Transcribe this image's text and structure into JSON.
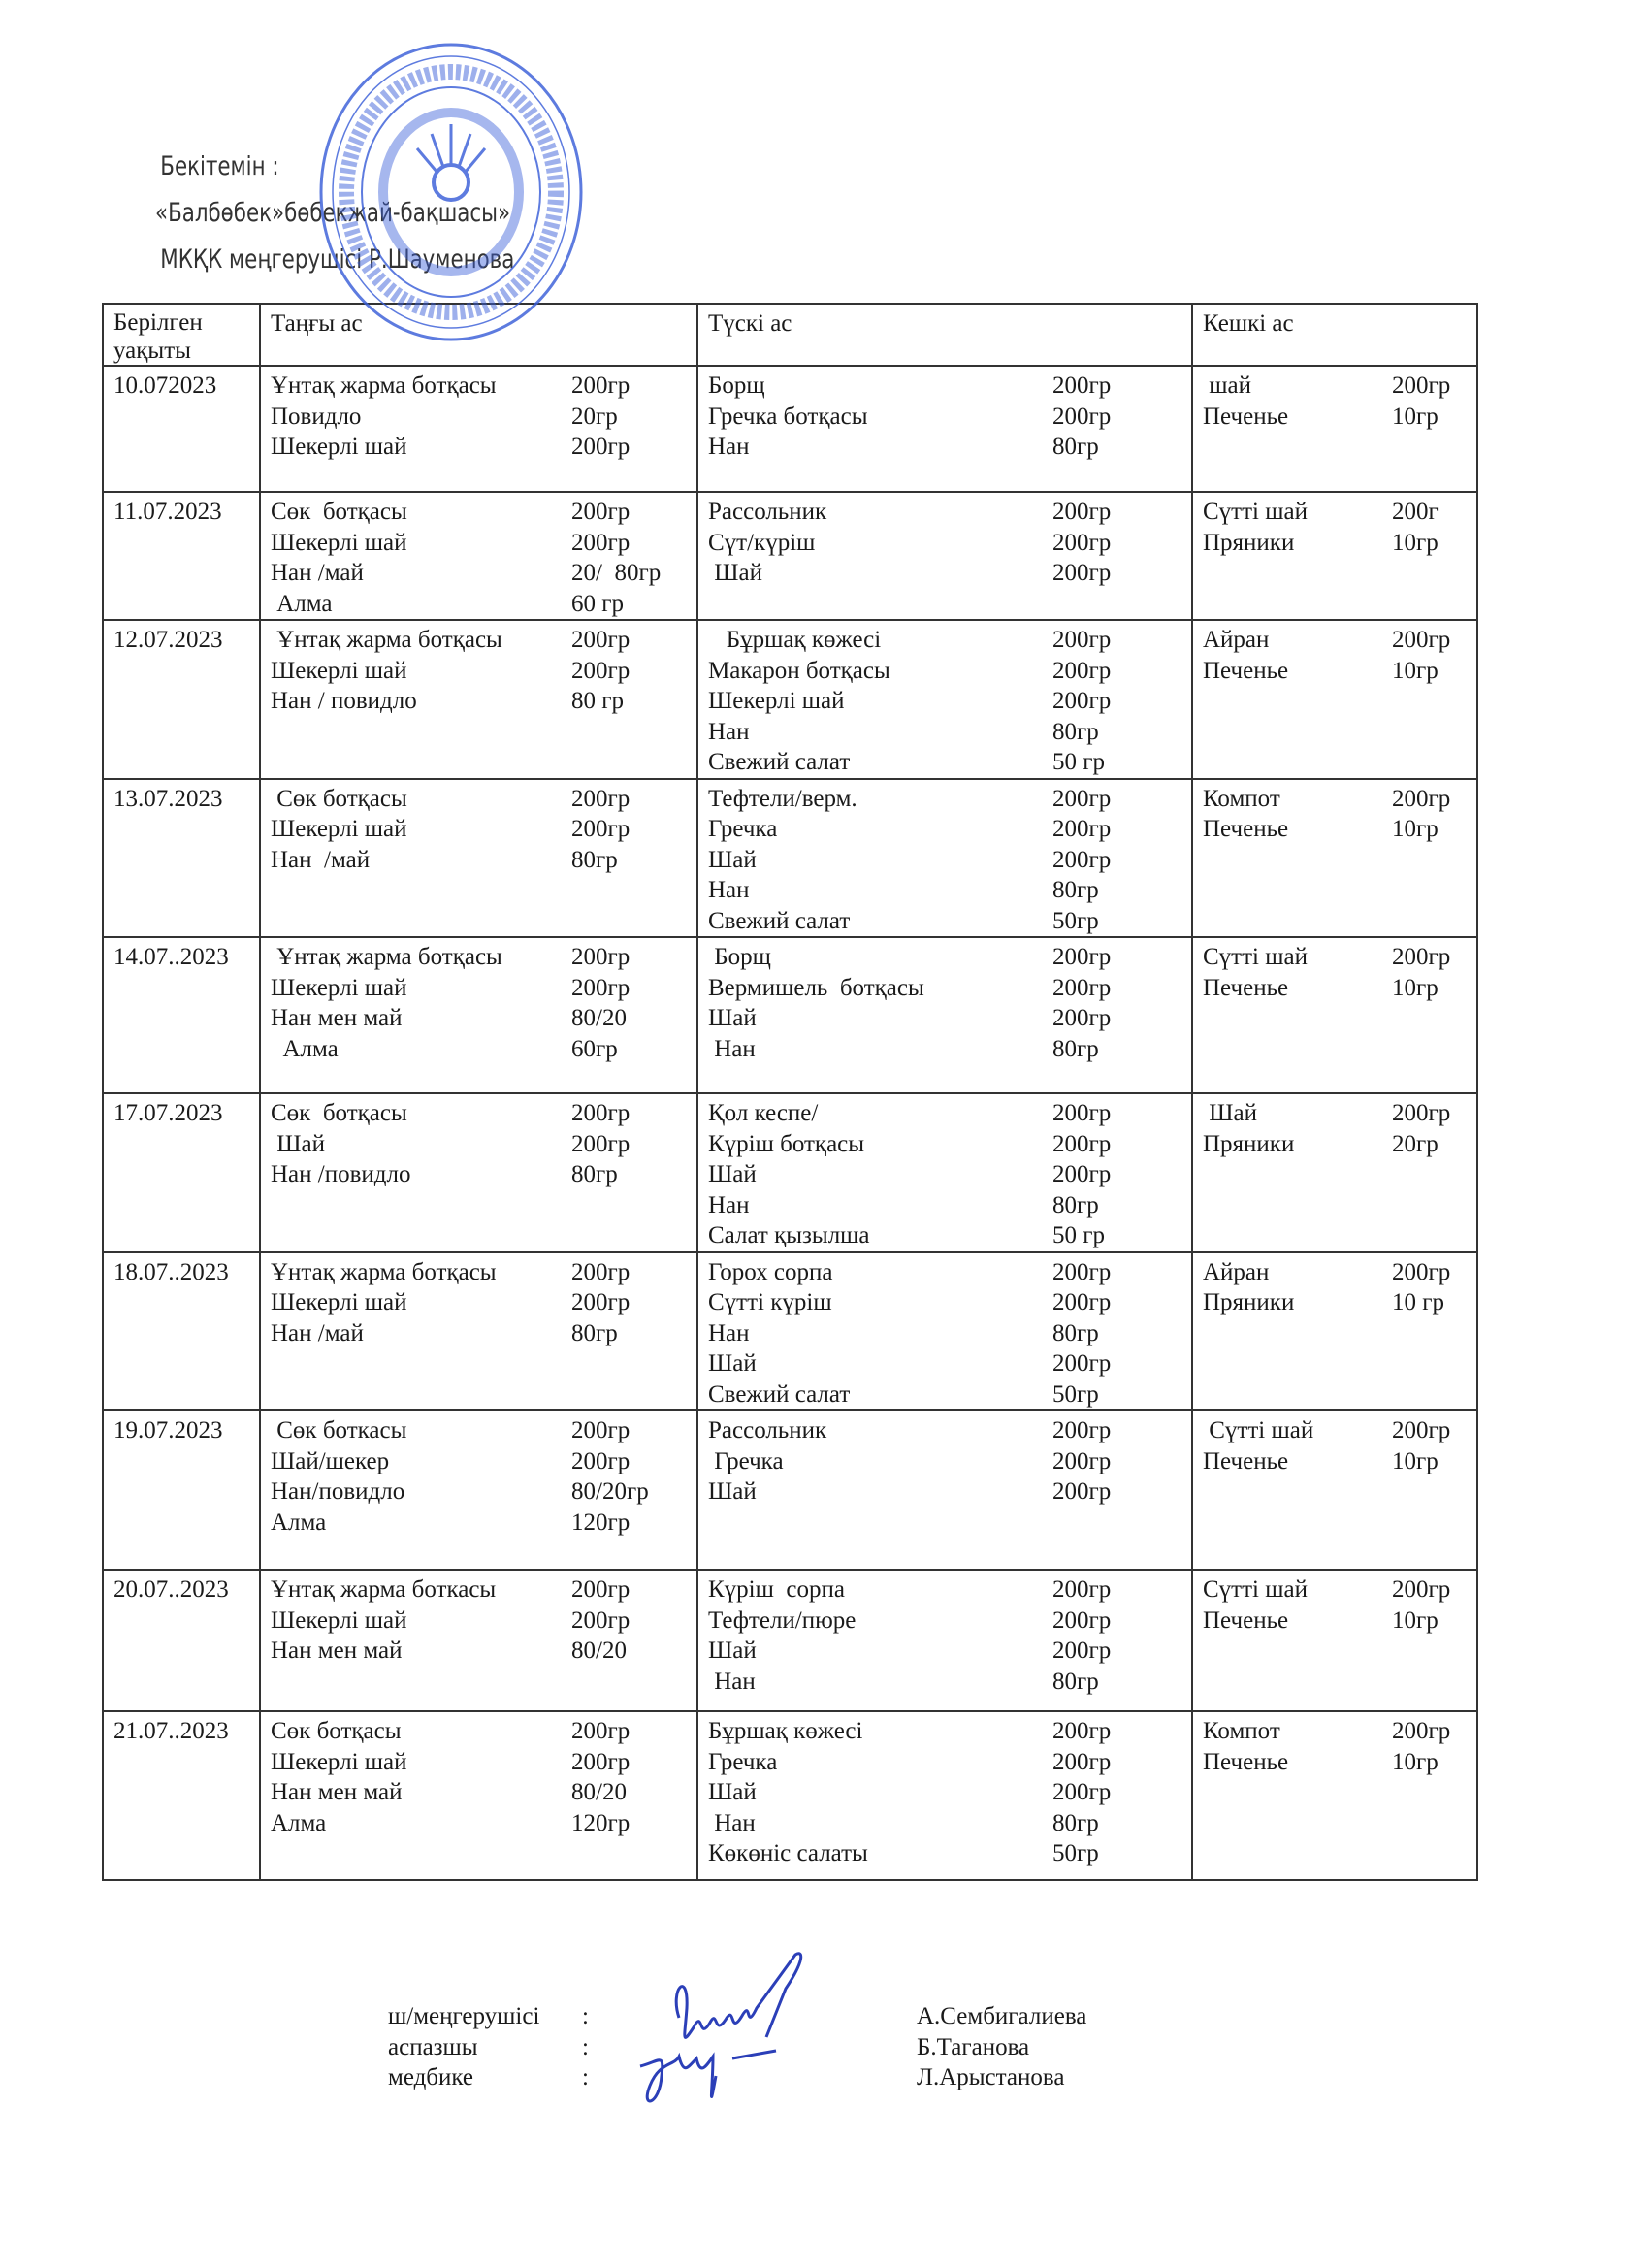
{
  "approval": {
    "line1": "Бекітемін :",
    "line2": "«Балбөбек»бөбекжай-бақшасы»",
    "line3": "МКҚК меңгерушісі Р.Шауменова"
  },
  "stamp": {
    "text": "Ақтөбе облысы Ойыл ауданының білім бөлімінің «Балбөбек» бөбекжай-бақшасы» мемлекеттік коммуналдық қазыналық кәсіпорны · Қазақстан Республикасы · 070540007037",
    "color": "#3a5fd8"
  },
  "table": {
    "headers": [
      "Берілген уақыты",
      "Таңғы ас",
      "Түскі ас",
      "Кешкі ас"
    ],
    "rows": [
      {
        "date": "10.072023",
        "h": 63,
        "breakfast": [
          [
            "Ұнтақ жарма ботқасы",
            "200гр"
          ],
          [
            "Повидло",
            "20гр"
          ],
          [
            "Шекерлі шай",
            "200гр"
          ]
        ],
        "lunch": [
          [
            "Борщ",
            "200гр"
          ],
          [
            "Гречка ботқасы",
            "200гр"
          ],
          [
            "Нан",
            "80гр"
          ]
        ],
        "dinner": [
          [
            " шай",
            "200гр"
          ],
          [
            "Печенье",
            "10гр"
          ]
        ]
      },
      {
        "date": "11.07.2023",
        "breakfast": [
          [
            "Сөк  ботқасы",
            "200гр"
          ],
          [
            "Шекерлі шай",
            "200гр"
          ],
          [
            "Нан /май",
            "20/  80гр"
          ],
          [
            " Алма",
            "60 гр"
          ]
        ],
        "lunch": [
          [
            "Рассольник",
            "200гр"
          ],
          [
            "Сүт/күріш",
            "200гр"
          ],
          [
            " Шай",
            "200гр"
          ]
        ],
        "dinner": [
          [
            "Сүтті шай",
            "200г"
          ],
          [
            "Пряники",
            "10гр"
          ]
        ]
      },
      {
        "date": "12.07.2023",
        "breakfast": [
          [
            " Ұнтақ жарма ботқасы",
            "200гр"
          ],
          [
            "Шекерлі шай",
            "200гр"
          ],
          [
            "Нан / повидло",
            "80 гр"
          ]
        ],
        "lunch": [
          [
            "   Бұршақ көжесі",
            "200гр"
          ],
          [
            "Макарон ботқасы",
            "200гр"
          ],
          [
            "Шекерлі шай",
            "200гр"
          ],
          [
            "Нан",
            "80гр"
          ],
          [
            "Свежий салат",
            "50 гр"
          ]
        ],
        "dinner": [
          [
            "Айран",
            "200гр"
          ],
          [
            "Печенье",
            "10гр"
          ]
        ]
      },
      {
        "date": "13.07.2023",
        "breakfast": [
          [
            " Сөк ботқасы",
            "200гр"
          ],
          [
            "Шекерлі шай",
            "200гр"
          ],
          [
            "Нан  /май",
            "80гр"
          ]
        ],
        "lunch": [
          [
            "Тефтели/верм.",
            "200гр"
          ],
          [
            "Гречка",
            "200гр"
          ],
          [
            "Шай",
            "200гр"
          ],
          [
            "Нан",
            "80гр"
          ],
          [
            "Свежий салат",
            "50гр"
          ]
        ],
        "dinner": [
          [
            "Компот",
            "200гр"
          ],
          [
            "Печенье",
            "10гр"
          ]
        ]
      },
      {
        "date": "14.07..2023",
        "breakfast": [
          [
            " Ұнтақ жарма ботқасы",
            "200гр"
          ],
          [
            "Шекерлі шай",
            "200гр"
          ],
          [
            "Нан мен май",
            "80/20"
          ],
          [
            "  Алма",
            "60гр"
          ]
        ],
        "lunch": [
          [
            " Борщ",
            "200гр"
          ],
          [
            "Вермишель  ботқасы",
            "200гр"
          ],
          [
            "Шай",
            "200гр"
          ],
          [
            " Нан",
            "80гр"
          ]
        ],
        "dinner": [
          [
            "Сүтті шай",
            "200гр"
          ],
          [
            "Печенье",
            "10гр"
          ]
        ]
      },
      {
        "date": "17.07.2023",
        "breakfast": [
          [
            "Сөк  ботқасы",
            "200гр"
          ],
          [
            " Шай",
            "200гр"
          ],
          [
            "Нан /повидло",
            "80гр"
          ]
        ],
        "lunch": [
          [
            "Қол кеспе/",
            "200гр"
          ],
          [
            "Күріш ботқасы",
            "200гр"
          ],
          [
            "Шай",
            "200гр"
          ],
          [
            "Нан",
            "80гр"
          ],
          [
            "Салат қызылша",
            "50 гр"
          ]
        ],
        "dinner": [
          [
            " Шай",
            "200гр"
          ],
          [
            "Пряники",
            "20гр"
          ]
        ]
      },
      {
        "date": "18.07..2023",
        "breakfast": [
          [
            "Ұнтақ жарма ботқасы",
            "200гр"
          ],
          [
            "Шекерлі шай",
            "200гр"
          ],
          [
            "Нан /май",
            "80гр"
          ]
        ],
        "lunch": [
          [
            "Горох сорпа",
            "200гр"
          ],
          [
            "Сүтті күріш",
            "200гр"
          ],
          [
            "Нан",
            "80гр"
          ],
          [
            "Шай",
            "200гр"
          ],
          [
            "Свежий салат",
            "50гр"
          ]
        ],
        "dinner": [
          [
            "Айран",
            "200гр"
          ],
          [
            "Пряники",
            "10 гр"
          ]
        ]
      },
      {
        "date": "19.07.2023",
        "breakfast": [
          [
            " Сөк боткасы",
            "200гр"
          ],
          [
            "Шай/шекер",
            "200гр"
          ],
          [
            "Нан/повидло",
            "80/20гр"
          ],
          [
            "Алма",
            "120гр"
          ]
        ],
        "lunch": [
          [
            "Рассольник",
            "200гр"
          ],
          [
            " Гречка",
            "200гр"
          ],
          [
            "Шай",
            "200гр"
          ]
        ],
        "dinner": [
          [
            " Сүтті шай",
            "200гр"
          ],
          [
            "Печенье",
            "10гр"
          ]
        ]
      },
      {
        "date": "20.07..2023",
        "breakfast": [
          [
            "Ұнтақ жарма боткасы",
            "200гр"
          ],
          [
            "Шекерлі шай",
            "200гр"
          ],
          [
            "Нан мен май",
            "80/20"
          ]
        ],
        "lunch": [
          [
            "Күріш  сорпа",
            "200гр"
          ],
          [
            "Тефтели/пюре",
            "200гр"
          ],
          [
            "Шай",
            "200гр"
          ],
          [
            " Нан",
            "80гр"
          ]
        ],
        "dinner": [
          [
            "Сүтті шай",
            "200гр"
          ],
          [
            "Печенье",
            "10гр"
          ]
        ]
      },
      {
        "date": "21.07..2023",
        "breakfast": [
          [
            "Сөк ботқасы",
            "200гр"
          ],
          [
            "Шекерлі шай",
            "200гр"
          ],
          [
            "Нан мен май",
            "80/20"
          ],
          [
            "Алма",
            "120гр"
          ]
        ],
        "lunch": [
          [
            "Бұршақ көжесі",
            "200гр"
          ],
          [
            "Гречка",
            "200гр"
          ],
          [
            "Шай",
            "200гр"
          ],
          [
            " Нан",
            "80гр"
          ],
          [
            "Көкөніс салаты",
            "50гр"
          ]
        ],
        "dinner": [
          [
            "Компот",
            "200гр"
          ],
          [
            "Печенье",
            "10гр"
          ]
        ]
      }
    ]
  },
  "signatures": [
    {
      "role": "ш/меңгерушісі",
      "sep": ":",
      "name": "А.Сембигалиева"
    },
    {
      "role": "аспазшы",
      "sep": ":",
      "name": "Б.Таганова"
    },
    {
      "role": "медбике",
      "sep": ":",
      "name": "Л.Арыстанова"
    }
  ],
  "signature_ink": "#2b3fb8"
}
